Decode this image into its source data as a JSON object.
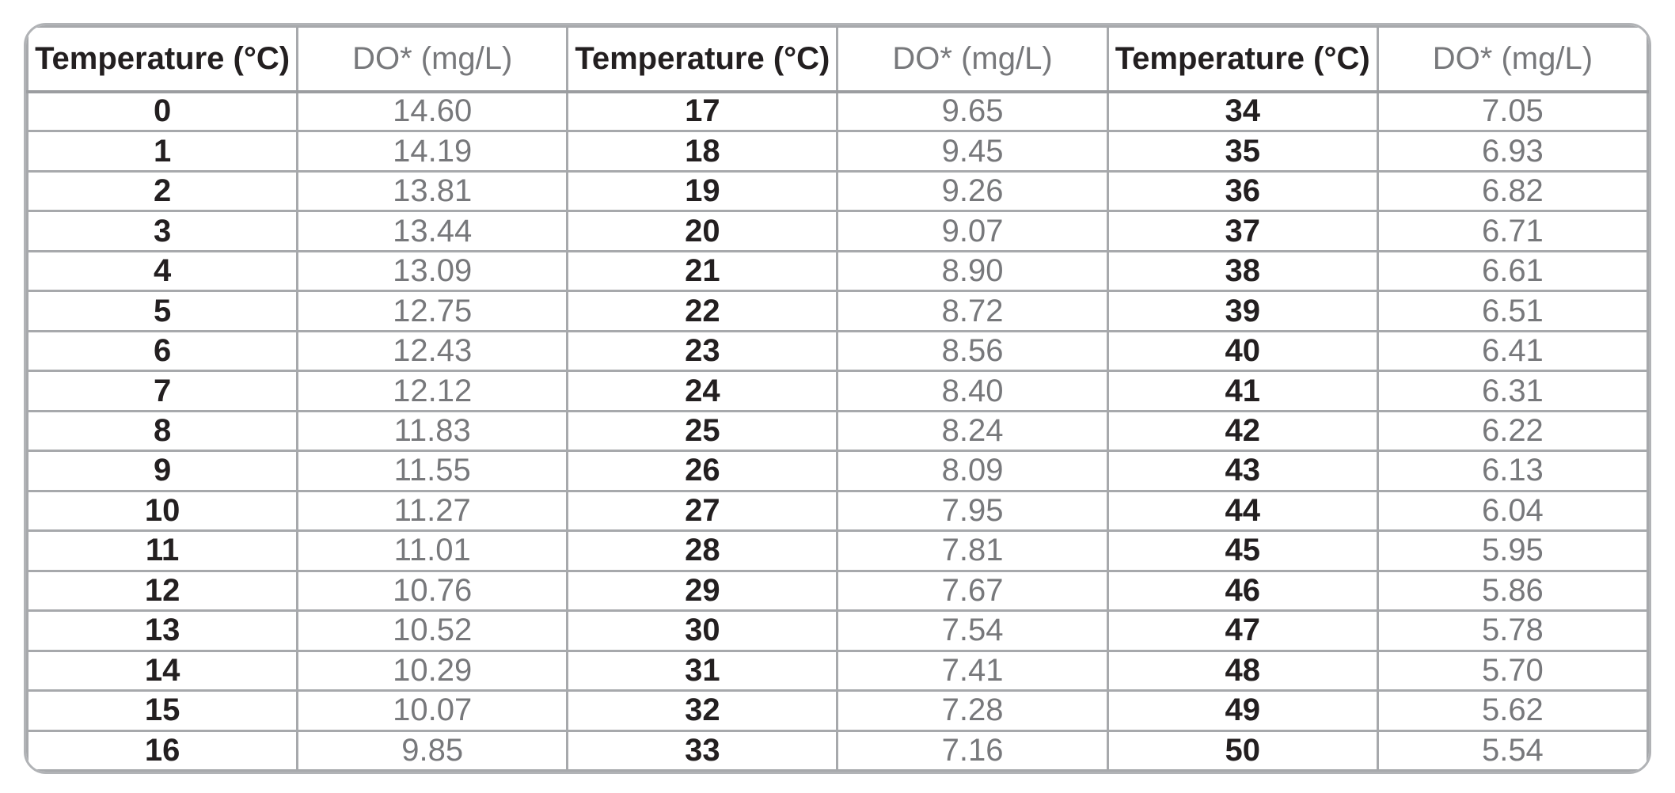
{
  "table": {
    "headers": [
      "Temperature (°C)",
      "DO* (mg/L)",
      "Temperature (°C)",
      "DO* (mg/L)",
      "Temperature (°C)",
      "DO* (mg/L)"
    ],
    "rows": [
      [
        "0",
        "14.60",
        "17",
        "9.65",
        "34",
        "7.05"
      ],
      [
        "1",
        "14.19",
        "18",
        "9.45",
        "35",
        "6.93"
      ],
      [
        "2",
        "13.81",
        "19",
        "9.26",
        "36",
        "6.82"
      ],
      [
        "3",
        "13.44",
        "20",
        "9.07",
        "37",
        "6.71"
      ],
      [
        "4",
        "13.09",
        "21",
        "8.90",
        "38",
        "6.61"
      ],
      [
        "5",
        "12.75",
        "22",
        "8.72",
        "39",
        "6.51"
      ],
      [
        "6",
        "12.43",
        "23",
        "8.56",
        "40",
        "6.41"
      ],
      [
        "7",
        "12.12",
        "24",
        "8.40",
        "41",
        "6.31"
      ],
      [
        "8",
        "11.83",
        "25",
        "8.24",
        "42",
        "6.22"
      ],
      [
        "9",
        "11.55",
        "26",
        "8.09",
        "43",
        "6.13"
      ],
      [
        "10",
        "11.27",
        "27",
        "7.95",
        "44",
        "6.04"
      ],
      [
        "11",
        "11.01",
        "28",
        "7.81",
        "45",
        "5.95"
      ],
      [
        "12",
        "10.76",
        "29",
        "7.67",
        "46",
        "5.86"
      ],
      [
        "13",
        "10.52",
        "30",
        "7.54",
        "47",
        "5.78"
      ],
      [
        "14",
        "10.29",
        "31",
        "7.41",
        "48",
        "5.70"
      ],
      [
        "15",
        "10.07",
        "32",
        "7.28",
        "49",
        "5.62"
      ],
      [
        "16",
        "9.85",
        "33",
        "7.16",
        "50",
        "5.54"
      ]
    ],
    "column_types": [
      "temp",
      "do",
      "temp",
      "do",
      "temp",
      "do"
    ]
  },
  "colors": {
    "grid_line": "#a7a9ac",
    "outer_border": "#b1b3b6",
    "temp_text": "#231f20",
    "do_text": "#77787b",
    "background": "#ffffff"
  }
}
